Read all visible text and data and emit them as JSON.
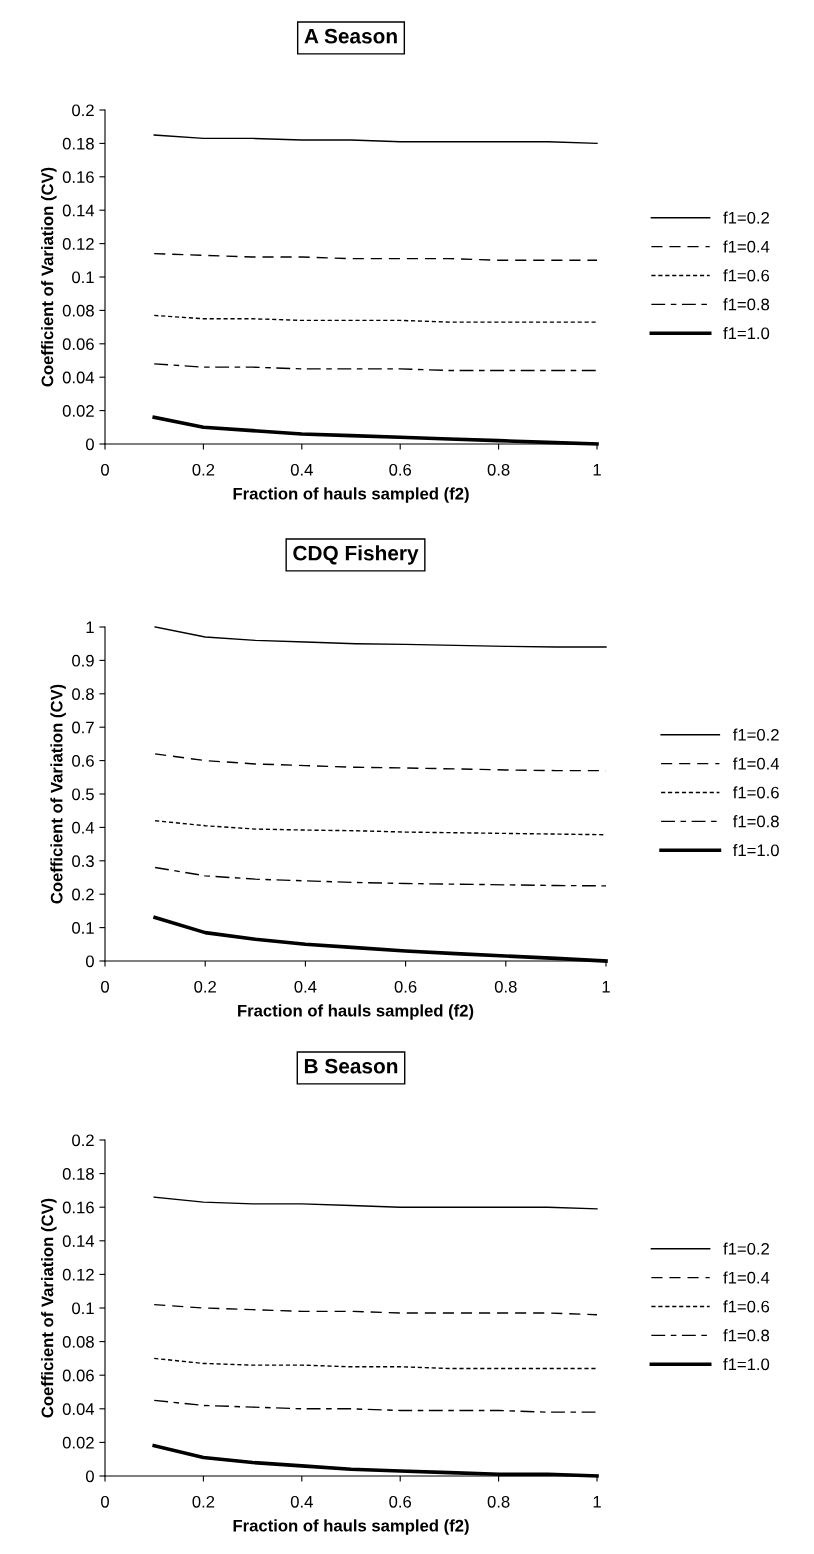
{
  "chart_data": [
    {
      "type": "line",
      "title": "A Season",
      "xlabel": "Fraction of hauls sampled (f2)",
      "ylabel": "Coefficient of Variation (CV)",
      "x": [
        0.1,
        0.2,
        0.3,
        0.4,
        0.5,
        0.6,
        0.7,
        0.8,
        0.9,
        1.0
      ],
      "xlim": [
        0,
        1
      ],
      "xticks": [
        0,
        0.2,
        0.4,
        0.6,
        0.8,
        1
      ],
      "ylim": [
        0,
        0.2
      ],
      "yticks": [
        0,
        0.02,
        0.04,
        0.06,
        0.08,
        0.1,
        0.12,
        0.14,
        0.16,
        0.18,
        0.2
      ],
      "grid": false,
      "legend": "right",
      "marker": "none",
      "series": [
        {
          "name": "f1=0.2",
          "color": "#000000",
          "line_style": "solid",
          "values": [
            0.185,
            0.183,
            0.183,
            0.182,
            0.182,
            0.181,
            0.181,
            0.181,
            0.181,
            0.18
          ]
        },
        {
          "name": "f1=0.4",
          "color": "#000000",
          "line_style": "dashed",
          "values": [
            0.114,
            0.113,
            0.112,
            0.112,
            0.111,
            0.111,
            0.111,
            0.11,
            0.11,
            0.11
          ]
        },
        {
          "name": "f1=0.6",
          "color": "#000000",
          "line_style": "dotted",
          "values": [
            0.077,
            0.075,
            0.075,
            0.074,
            0.074,
            0.074,
            0.073,
            0.073,
            0.073,
            0.073
          ]
        },
        {
          "name": "f1=0.8",
          "color": "#000000",
          "line_style": "dashdot",
          "values": [
            0.048,
            0.046,
            0.046,
            0.045,
            0.045,
            0.045,
            0.044,
            0.044,
            0.044,
            0.044
          ]
        },
        {
          "name": "f1=1.0",
          "color": "#000000",
          "line_style": "solid",
          "values": [
            0.016,
            0.01,
            0.008,
            0.006,
            0.005,
            0.004,
            0.003,
            0.002,
            0.001,
            0.0
          ]
        }
      ]
    },
    {
      "type": "line",
      "title": "CDQ Fishery",
      "xlabel": "Fraction of hauls sampled (f2)",
      "ylabel": "Coefficient of Variation (CV)",
      "x": [
        0.1,
        0.2,
        0.3,
        0.4,
        0.5,
        0.6,
        0.7,
        0.8,
        0.9,
        1.0
      ],
      "xlim": [
        0,
        1
      ],
      "xticks": [
        0,
        0.2,
        0.4,
        0.6,
        0.8,
        1
      ],
      "ylim": [
        0,
        1
      ],
      "yticks": [
        0,
        0.1,
        0.2,
        0.3,
        0.4,
        0.5,
        0.6,
        0.7,
        0.8,
        0.9,
        1
      ],
      "grid": false,
      "legend": "right",
      "marker": "none",
      "series": [
        {
          "name": "f1=0.2",
          "color": "#000000",
          "line_style": "solid",
          "values": [
            1.0,
            0.97,
            0.96,
            0.955,
            0.95,
            0.948,
            0.945,
            0.942,
            0.94,
            0.94
          ]
        },
        {
          "name": "f1=0.4",
          "color": "#000000",
          "line_style": "dashed",
          "values": [
            0.62,
            0.6,
            0.59,
            0.585,
            0.58,
            0.578,
            0.575,
            0.572,
            0.57,
            0.57
          ]
        },
        {
          "name": "f1=0.6",
          "color": "#000000",
          "line_style": "dotted",
          "values": [
            0.42,
            0.405,
            0.395,
            0.392,
            0.39,
            0.386,
            0.384,
            0.382,
            0.38,
            0.378
          ]
        },
        {
          "name": "f1=0.8",
          "color": "#000000",
          "line_style": "dashdot",
          "values": [
            0.28,
            0.255,
            0.245,
            0.24,
            0.235,
            0.232,
            0.23,
            0.228,
            0.226,
            0.225
          ]
        },
        {
          "name": "f1=1.0",
          "color": "#000000",
          "line_style": "solid",
          "values": [
            0.13,
            0.085,
            0.065,
            0.05,
            0.04,
            0.03,
            0.022,
            0.015,
            0.008,
            0.0
          ]
        }
      ]
    },
    {
      "type": "line",
      "title": "B Season",
      "xlabel": "Fraction of hauls sampled (f2)",
      "ylabel": "Coefficient of Variation (CV)",
      "x": [
        0.1,
        0.2,
        0.3,
        0.4,
        0.5,
        0.6,
        0.7,
        0.8,
        0.9,
        1.0
      ],
      "xlim": [
        0,
        1
      ],
      "xticks": [
        0,
        0.2,
        0.4,
        0.6,
        0.8,
        1
      ],
      "ylim": [
        0,
        0.2
      ],
      "yticks": [
        0,
        0.02,
        0.04,
        0.06,
        0.08,
        0.1,
        0.12,
        0.14,
        0.16,
        0.18,
        0.2
      ],
      "grid": false,
      "legend": "right",
      "marker": "none",
      "series": [
        {
          "name": "f1=0.2",
          "color": "#000000",
          "line_style": "solid",
          "values": [
            0.166,
            0.163,
            0.162,
            0.162,
            0.161,
            0.16,
            0.16,
            0.16,
            0.16,
            0.159
          ]
        },
        {
          "name": "f1=0.4",
          "color": "#000000",
          "line_style": "dashed",
          "values": [
            0.102,
            0.1,
            0.099,
            0.098,
            0.098,
            0.097,
            0.097,
            0.097,
            0.097,
            0.096
          ]
        },
        {
          "name": "f1=0.6",
          "color": "#000000",
          "line_style": "dotted",
          "values": [
            0.07,
            0.067,
            0.066,
            0.066,
            0.065,
            0.065,
            0.064,
            0.064,
            0.064,
            0.064
          ]
        },
        {
          "name": "f1=0.8",
          "color": "#000000",
          "line_style": "dashdot",
          "values": [
            0.045,
            0.042,
            0.041,
            0.04,
            0.04,
            0.039,
            0.039,
            0.039,
            0.038,
            0.038
          ]
        },
        {
          "name": "f1=1.0",
          "color": "#000000",
          "line_style": "solid",
          "values": [
            0.018,
            0.011,
            0.008,
            0.006,
            0.004,
            0.003,
            0.002,
            0.001,
            0.001,
            0.0
          ]
        }
      ]
    }
  ]
}
